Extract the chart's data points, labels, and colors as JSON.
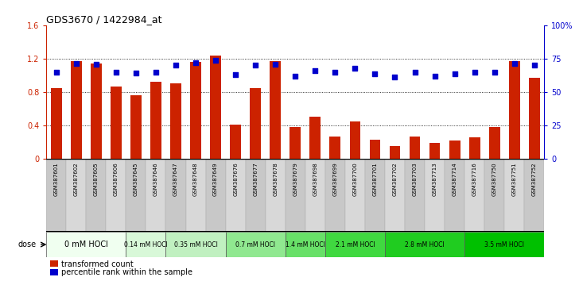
{
  "title": "GDS3670 / 1422984_at",
  "samples": [
    "GSM387601",
    "GSM387602",
    "GSM387605",
    "GSM387606",
    "GSM387645",
    "GSM387646",
    "GSM387647",
    "GSM387648",
    "GSM387649",
    "GSM387676",
    "GSM387677",
    "GSM387678",
    "GSM387679",
    "GSM387698",
    "GSM387699",
    "GSM387700",
    "GSM387701",
    "GSM387702",
    "GSM387703",
    "GSM387713",
    "GSM387714",
    "GSM387716",
    "GSM387750",
    "GSM387751",
    "GSM387752"
  ],
  "bar_values": [
    0.85,
    1.17,
    1.14,
    0.87,
    0.76,
    0.92,
    0.9,
    1.16,
    1.24,
    0.41,
    0.85,
    1.17,
    0.38,
    0.5,
    0.27,
    0.45,
    0.23,
    0.15,
    0.27,
    0.19,
    0.22,
    0.26,
    0.38,
    1.17,
    0.97
  ],
  "dot_values": [
    1.04,
    1.14,
    1.13,
    1.04,
    1.03,
    1.04,
    1.12,
    1.15,
    1.18,
    1.01,
    1.12,
    1.13,
    0.99,
    1.06,
    1.04,
    1.08,
    1.02,
    0.98,
    1.04,
    0.99,
    1.02,
    1.04,
    1.04,
    1.14,
    1.12
  ],
  "groups": [
    {
      "label": "0 mM HOCl",
      "start": 0,
      "end": 4,
      "color": "#f0fff0"
    },
    {
      "label": "0.14 mM HOCl",
      "start": 4,
      "end": 6,
      "color": "#d8f8d8"
    },
    {
      "label": "0.35 mM HOCl",
      "start": 6,
      "end": 9,
      "color": "#c0f0c0"
    },
    {
      "label": "0.7 mM HOCl",
      "start": 9,
      "end": 12,
      "color": "#90e890"
    },
    {
      "label": "1.4 mM HOCl",
      "start": 12,
      "end": 14,
      "color": "#68e068"
    },
    {
      "label": "2.1 mM HOCl",
      "start": 14,
      "end": 17,
      "color": "#40d840"
    },
    {
      "label": "2.8 mM HOCl",
      "start": 17,
      "end": 21,
      "color": "#20cc20"
    },
    {
      "label": "3.5 mM HOCl",
      "start": 21,
      "end": 25,
      "color": "#00c000"
    }
  ],
  "bar_color": "#cc2200",
  "dot_color": "#0000cc",
  "ylim": [
    0,
    1.6
  ],
  "yticks_left": [
    0,
    0.4,
    0.8,
    1.2,
    1.6
  ],
  "yticks_left_labels": [
    "0",
    "0.4",
    "0.8",
    "1.2",
    "1.6"
  ],
  "yticks_right_vals": [
    0,
    0.4,
    0.8,
    1.2,
    1.6
  ],
  "yticks_right_labels": [
    "0",
    "25",
    "50",
    "75",
    "100%"
  ],
  "legend_bar": "transformed count",
  "legend_dot": "percentile rank within the sample",
  "dose_label": "dose",
  "background_color": "#ffffff",
  "sample_bg": "#d0d0d0"
}
